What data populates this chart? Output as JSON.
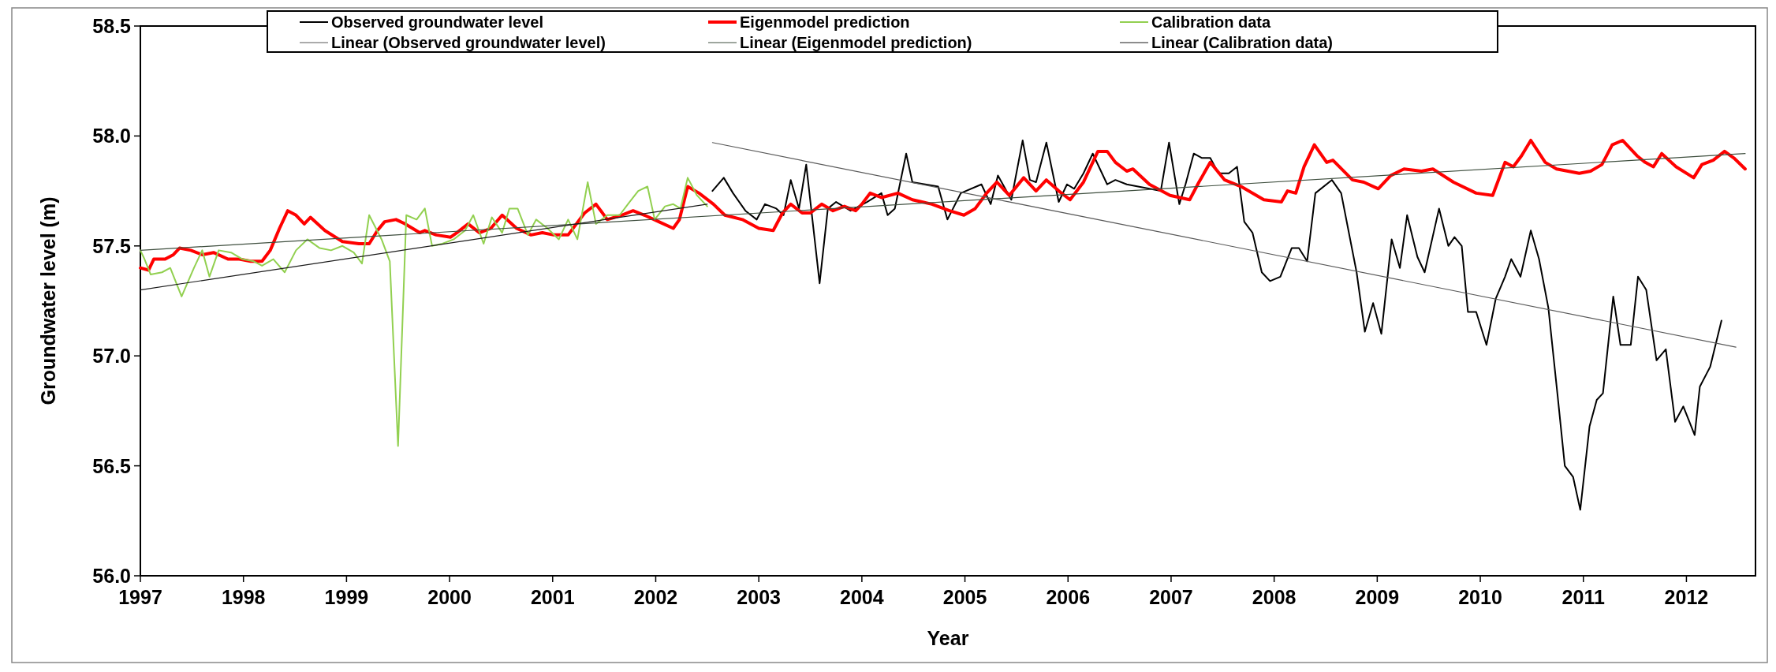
{
  "chart_data": {
    "type": "line",
    "xlabel": "Year",
    "ylabel": "Groundwater level (m)",
    "xlim": [
      1997,
      2012.67
    ],
    "xticks": [
      1997,
      1998,
      1999,
      2000,
      2001,
      2002,
      2003,
      2004,
      2005,
      2006,
      2007,
      2008,
      2009,
      2010,
      2011,
      2012
    ],
    "ylim": [
      56,
      58.5
    ],
    "yticks": [
      {
        "value": 56,
        "label": "56.0"
      },
      {
        "value": 56.5,
        "label": "56.5"
      },
      {
        "value": 57,
        "label": "57.0"
      },
      {
        "value": 57.5,
        "label": "57.5"
      },
      {
        "value": 58,
        "label": "58.0"
      },
      {
        "value": 58.5,
        "label": "58.5"
      }
    ],
    "grid": false,
    "legend": "top",
    "line_style": "solid",
    "series": [
      {
        "name": "Observed groundwater level",
        "color": "#000000",
        "x": [
          2002.55,
          2002.66,
          2002.75,
          2002.87,
          2002.98,
          2003.06,
          2003.17,
          2003.24,
          2003.31,
          2003.39,
          2003.46,
          2003.59,
          2003.67,
          2003.75,
          2003.89,
          2004.05,
          2004.19,
          2004.25,
          2004.32,
          2004.43,
          2004.49,
          2004.74,
          2004.83,
          2004.96,
          2005.16,
          2005.25,
          2005.32,
          2005.45,
          2005.56,
          2005.63,
          2005.69,
          2005.79,
          2005.91,
          2005.99,
          2006.06,
          2006.15,
          2006.24,
          2006.38,
          2006.46,
          2006.57,
          2006.9,
          2006.98,
          2007.08,
          2007.14,
          2007.22,
          2007.3,
          2007.38,
          2007.46,
          2007.56,
          2007.64,
          2007.71,
          2007.79,
          2007.88,
          2007.96,
          2008.06,
          2008.17,
          2008.24,
          2008.32,
          2008.4,
          2008.56,
          2008.65,
          2008.8,
          2008.88,
          2008.96,
          2009.04,
          2009.14,
          2009.22,
          2009.29,
          2009.39,
          2009.46,
          2009.6,
          2009.69,
          2009.75,
          2009.82,
          2009.88,
          2009.96,
          2010.06,
          2010.15,
          2010.24,
          2010.3,
          2010.39,
          2010.49,
          2010.57,
          2010.66,
          2010.75,
          2010.82,
          2010.9,
          2010.97,
          2011.06,
          2011.13,
          2011.19,
          2011.29,
          2011.36,
          2011.46,
          2011.53,
          2011.61,
          2011.71,
          2011.8,
          2011.89,
          2011.97,
          2012.08,
          2012.13,
          2012.23,
          2012.34
        ],
        "values": [
          57.75,
          57.81,
          57.74,
          57.66,
          57.62,
          57.69,
          57.67,
          57.64,
          57.8,
          57.67,
          57.87,
          57.33,
          57.67,
          57.7,
          57.66,
          57.7,
          57.74,
          57.64,
          57.67,
          57.92,
          57.79,
          57.77,
          57.62,
          57.74,
          57.78,
          57.69,
          57.82,
          57.71,
          57.98,
          57.8,
          57.79,
          57.97,
          57.7,
          57.78,
          57.76,
          57.83,
          57.92,
          57.78,
          57.8,
          57.78,
          57.75,
          57.97,
          57.69,
          57.78,
          57.92,
          57.9,
          57.9,
          57.83,
          57.83,
          57.86,
          57.61,
          57.56,
          57.38,
          57.34,
          57.36,
          57.49,
          57.49,
          57.43,
          57.74,
          57.8,
          57.74,
          57.38,
          57.11,
          57.24,
          57.1,
          57.53,
          57.4,
          57.64,
          57.45,
          57.38,
          57.67,
          57.5,
          57.54,
          57.5,
          57.2,
          57.2,
          57.05,
          57.26,
          57.36,
          57.44,
          57.36,
          57.57,
          57.44,
          57.22,
          56.82,
          56.5,
          56.45,
          56.3,
          56.68,
          56.8,
          56.83,
          57.27,
          57.05,
          57.05,
          57.36,
          57.3,
          56.98,
          57.03,
          56.7,
          56.77,
          56.64,
          56.86,
          56.95,
          57.16
        ]
      },
      {
        "name": "Eigenmodel prediction",
        "color": "#ff0000",
        "x": [
          1997,
          1997.08,
          1997.13,
          1997.24,
          1997.32,
          1997.38,
          1997.49,
          1997.6,
          1997.71,
          1997.85,
          1997.96,
          1998.07,
          1998.18,
          1998.26,
          1998.35,
          1998.43,
          1998.51,
          1998.59,
          1998.65,
          1998.79,
          1998.96,
          1999.12,
          1999.22,
          1999.3,
          1999.37,
          1999.48,
          1999.57,
          1999.71,
          1999.76,
          1999.87,
          2000.01,
          2000.07,
          2000.18,
          2000.29,
          2000.4,
          2000.51,
          2000.65,
          2000.79,
          2000.9,
          2001.01,
          2001.15,
          2001.23,
          2001.31,
          2001.42,
          2001.53,
          2001.67,
          2001.78,
          2001.89,
          2002.03,
          2002.17,
          2002.23,
          2002.31,
          2002.42,
          2002.56,
          2002.67,
          2002.84,
          2003,
          2003.14,
          2003.23,
          2003.31,
          2003.42,
          2003.5,
          2003.61,
          2003.72,
          2003.83,
          2003.94,
          2004,
          2004.08,
          2004.19,
          2004.35,
          2004.49,
          2004.68,
          2004.85,
          2004.99,
          2005.1,
          2005.21,
          2005.31,
          2005.43,
          2005.57,
          2005.69,
          2005.79,
          2005.91,
          2006.02,
          2006.15,
          2006.29,
          2006.38,
          2006.46,
          2006.57,
          2006.63,
          2006.79,
          2006.99,
          2007.18,
          2007.27,
          2007.38,
          2007.52,
          2007.68,
          2007.9,
          2008.07,
          2008.13,
          2008.21,
          2008.29,
          2008.39,
          2008.51,
          2008.57,
          2008.76,
          2008.87,
          2009.01,
          2009.13,
          2009.26,
          2009.43,
          2009.54,
          2009.74,
          2009.96,
          2010.12,
          2010.24,
          2010.32,
          2010.4,
          2010.49,
          2010.63,
          2010.74,
          2010.85,
          2010.96,
          2011.07,
          2011.18,
          2011.28,
          2011.38,
          2011.52,
          2011.6,
          2011.68,
          2011.76,
          2011.9,
          2012.07,
          2012.15,
          2012.26,
          2012.37,
          2012.46,
          2012.57
        ],
        "values": [
          57.4,
          57.39,
          57.44,
          57.44,
          57.46,
          57.49,
          57.48,
          57.46,
          57.47,
          57.44,
          57.44,
          57.43,
          57.43,
          57.48,
          57.58,
          57.66,
          57.64,
          57.6,
          57.63,
          57.57,
          57.52,
          57.51,
          57.51,
          57.57,
          57.61,
          57.62,
          57.6,
          57.56,
          57.57,
          57.55,
          57.54,
          57.56,
          57.6,
          57.56,
          57.58,
          57.64,
          57.58,
          57.55,
          57.56,
          57.55,
          57.55,
          57.6,
          57.65,
          57.69,
          57.62,
          57.64,
          57.66,
          57.64,
          57.61,
          57.58,
          57.62,
          57.77,
          57.74,
          57.69,
          57.64,
          57.62,
          57.58,
          57.57,
          57.65,
          57.69,
          57.65,
          57.65,
          57.69,
          57.66,
          57.68,
          57.66,
          57.69,
          57.74,
          57.72,
          57.74,
          57.71,
          57.69,
          57.66,
          57.64,
          57.67,
          57.74,
          57.79,
          57.73,
          57.81,
          57.75,
          57.8,
          57.75,
          57.71,
          57.79,
          57.93,
          57.93,
          57.88,
          57.84,
          57.85,
          57.78,
          57.73,
          57.71,
          57.79,
          57.88,
          57.8,
          57.77,
          57.71,
          57.7,
          57.75,
          57.74,
          57.86,
          57.96,
          57.88,
          57.89,
          57.8,
          57.79,
          57.76,
          57.82,
          57.85,
          57.84,
          57.85,
          57.79,
          57.74,
          57.73,
          57.88,
          57.86,
          57.91,
          57.98,
          57.88,
          57.85,
          57.84,
          57.83,
          57.84,
          57.87,
          57.96,
          57.98,
          57.91,
          57.88,
          57.86,
          57.92,
          57.86,
          57.81,
          57.87,
          57.89,
          57.93,
          57.9,
          57.85
        ]
      },
      {
        "name": "Calibration data",
        "color": "#92d050",
        "x": [
          1997,
          1997.04,
          1997.1,
          1997.21,
          1997.29,
          1997.4,
          1997.52,
          1997.6,
          1997.67,
          1997.76,
          1997.88,
          1997.99,
          1998.1,
          1998.18,
          1998.29,
          1998.4,
          1998.51,
          1998.62,
          1998.74,
          1998.85,
          1998.96,
          1999.07,
          1999.15,
          1999.22,
          1999.34,
          1999.42,
          1999.5,
          1999.58,
          1999.68,
          1999.76,
          1999.83,
          1999.93,
          2000.04,
          2000.15,
          2000.23,
          2000.33,
          2000.41,
          2000.51,
          2000.58,
          2000.66,
          2000.76,
          2000.84,
          2000.95,
          2001.06,
          2001.15,
          2001.24,
          2001.34,
          2001.42,
          2001.53,
          2001.65,
          2001.73,
          2001.83,
          2001.92,
          2001.99,
          2002.09,
          2002.17,
          2002.24,
          2002.31,
          2002.4,
          2002.5
        ],
        "values": [
          57.48,
          57.44,
          57.37,
          57.38,
          57.4,
          57.27,
          57.4,
          57.48,
          57.36,
          57.48,
          57.47,
          57.44,
          57.43,
          57.41,
          57.44,
          57.38,
          57.48,
          57.53,
          57.49,
          57.48,
          57.5,
          57.47,
          57.42,
          57.64,
          57.53,
          57.43,
          56.59,
          57.64,
          57.62,
          57.67,
          57.5,
          57.51,
          57.53,
          57.57,
          57.64,
          57.51,
          57.63,
          57.56,
          57.67,
          57.67,
          57.55,
          57.62,
          57.58,
          57.53,
          57.62,
          57.53,
          57.79,
          57.6,
          57.64,
          57.64,
          57.69,
          57.75,
          57.77,
          57.62,
          57.68,
          57.69,
          57.67,
          57.81,
          57.73,
          57.68
        ]
      },
      {
        "name": "Linear (Observed groundwater level)",
        "color": "#595959",
        "x": [
          2002.55,
          2012.48
        ],
        "values": [
          57.97,
          57.04
        ]
      },
      {
        "name": "Linear (Eigenmodel prediction)",
        "color": "#3f4f3f",
        "x": [
          1997,
          2012.57
        ],
        "values": [
          57.48,
          57.92
        ]
      },
      {
        "name": "Linear (Calibration data)",
        "color": "#1a1a1a",
        "x": [
          1997,
          2002.5
        ],
        "values": [
          57.3,
          57.69
        ]
      }
    ]
  }
}
